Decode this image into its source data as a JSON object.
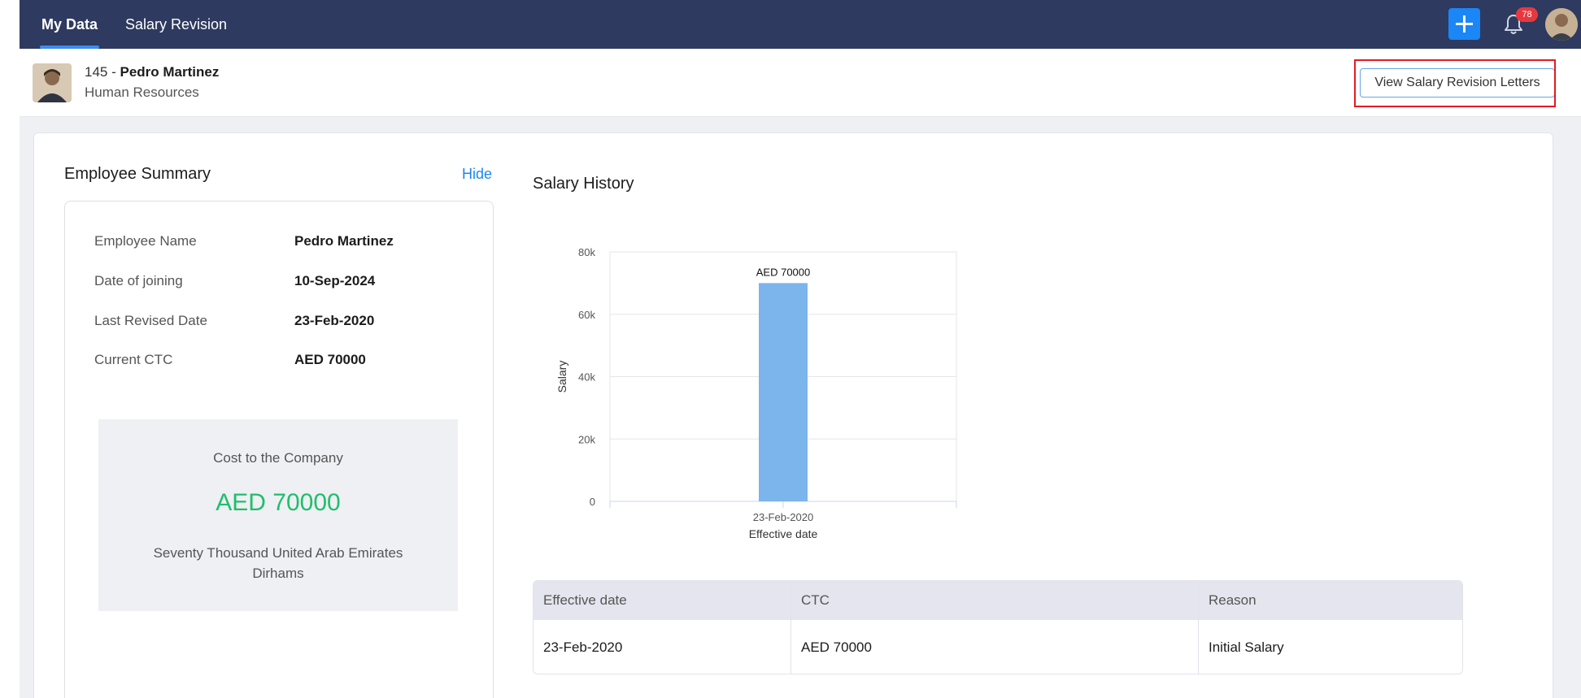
{
  "nav": {
    "tabs": [
      {
        "label": "My Data",
        "active": true
      },
      {
        "label": "Salary Revision",
        "active": false
      }
    ],
    "notification_count": "78"
  },
  "employee": {
    "id": "145",
    "separator": " - ",
    "name": "Pedro Martinez",
    "department": "Human Resources"
  },
  "actions": {
    "view_letters_label": "View Salary Revision Letters"
  },
  "summary": {
    "title": "Employee Summary",
    "hide_label": "Hide",
    "fields": [
      {
        "label": "Employee Name",
        "value": "Pedro Martinez"
      },
      {
        "label": "Date of joining",
        "value": "10-Sep-2024"
      },
      {
        "label": "Last Revised Date",
        "value": "23-Feb-2020"
      },
      {
        "label": "Current CTC",
        "value": "AED 70000"
      }
    ],
    "ctc": {
      "label": "Cost to the Company",
      "amount": "AED 70000",
      "words": "Seventy Thousand United Arab Emirates Dirhams"
    }
  },
  "history": {
    "title": "Salary History"
  },
  "chart_data": {
    "type": "bar",
    "categories": [
      "23-Feb-2020"
    ],
    "values": [
      70000
    ],
    "data_labels": [
      "AED 70000"
    ],
    "xlabel": "Effective date",
    "ylabel": "Salary",
    "ylim": [
      0,
      80000
    ],
    "yticks": [
      0,
      20000,
      40000,
      60000,
      80000
    ],
    "ytick_labels": [
      "0",
      "20k",
      "40k",
      "60k",
      "80k"
    ],
    "grid": true,
    "bar_color": "#7cb4ec"
  },
  "table": {
    "columns": [
      "Effective date",
      "CTC",
      "Reason"
    ],
    "rows": [
      [
        "23-Feb-2020",
        "AED 70000",
        "Initial Salary"
      ]
    ]
  },
  "colors": {
    "nav_bg": "#2e3a5f",
    "accent": "#1b86f5",
    "ctc_green": "#1fbf6b",
    "highlight_red": "#e21b23"
  }
}
